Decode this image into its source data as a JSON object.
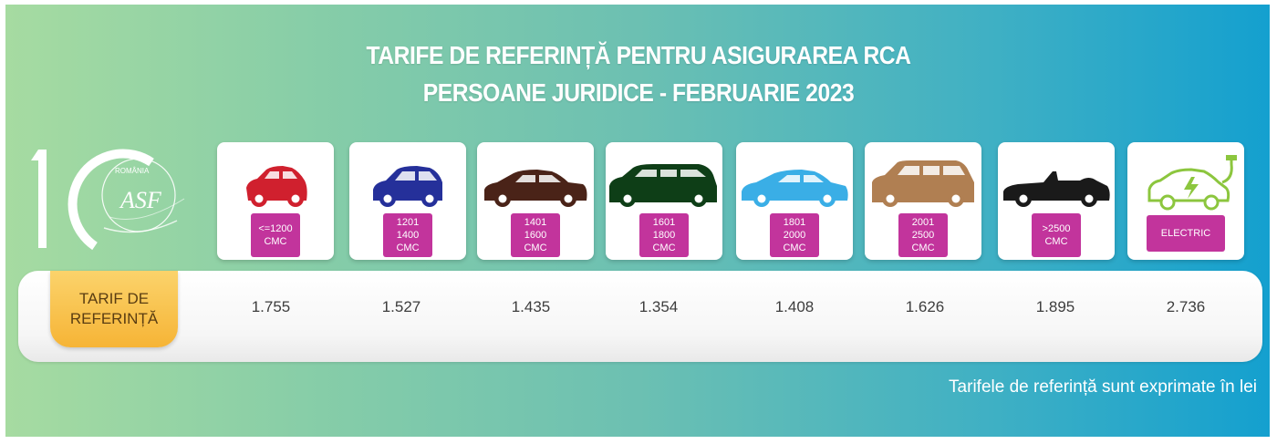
{
  "title_line1": "TARIFE DE REFERINȚĂ PENTRU ASIGURAREA RCA",
  "title_line2": "PERSOANE JURIDICE - FEBRUARIE 2023",
  "logo": {
    "text_top": "ROMÂNIA",
    "monogram": "ASF",
    "number": "10"
  },
  "row_label": {
    "line1": "TARIF DE",
    "line2": "REFERINȚĂ"
  },
  "categories": [
    {
      "label": "<=1200\nCMC",
      "value": "1.755",
      "color": "#d0202e",
      "icon": "hatchback-car-icon"
    },
    {
      "label": "1201\n1400\nCMC",
      "value": "1.527",
      "color": "#25309a",
      "icon": "compact-car-icon"
    },
    {
      "label": "1401\n1600\nCMC",
      "value": "1.435",
      "color": "#4a2318",
      "icon": "sedan-car-icon"
    },
    {
      "label": "1601\n1800\nCMC",
      "value": "1.354",
      "color": "#0e3e17",
      "icon": "minivan-icon"
    },
    {
      "label": "1801\n2000\nCMC",
      "value": "1.408",
      "color": "#3aaee6",
      "icon": "coupe-car-icon"
    },
    {
      "label": "2001\n2500\nCMC",
      "value": "1.626",
      "color": "#b07f52",
      "icon": "suv-icon"
    },
    {
      "label": ">2500\nCMC",
      "value": "1.895",
      "color": "#1a1a1a",
      "icon": "convertible-car-icon"
    },
    {
      "label": "ELECTRIC",
      "value": "2.736",
      "color": "#8cc63e",
      "icon": "electric-car-icon"
    }
  ],
  "footnote": "Tarifele de referință sunt exprimate în lei",
  "colors": {
    "tag": "#c2349c",
    "label_tab": "#f6b436",
    "panel_start": "#a6dba1",
    "panel_end": "#14a0cf"
  }
}
